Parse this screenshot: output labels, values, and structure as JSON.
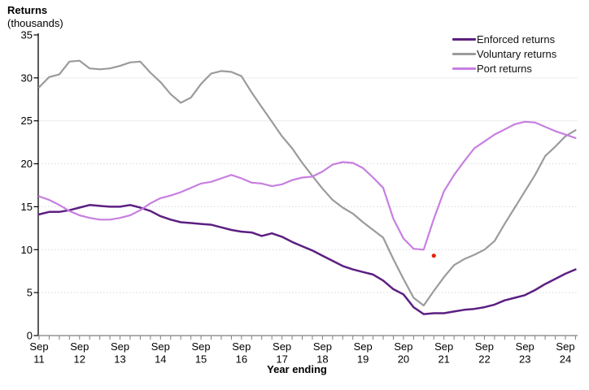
{
  "page": {
    "title": "Returns",
    "subtitle": "(thousands)"
  },
  "chart_data": {
    "type": "line",
    "title": "Returns",
    "subtitle": "(thousands)",
    "xlabel": "Year ending",
    "ylabel": "",
    "ylim": [
      0,
      35
    ],
    "yticks": [
      0,
      5,
      10,
      15,
      20,
      25,
      30,
      35
    ],
    "grid": "horizontal-light",
    "legend_position": "top-right",
    "x_tick_note": "quarterly minor ticks, year labels each September",
    "x": [
      "Sep 11",
      "Dec 11",
      "Mar 12",
      "Jun 12",
      "Sep 12",
      "Dec 12",
      "Mar 13",
      "Jun 13",
      "Sep 13",
      "Dec 13",
      "Mar 14",
      "Jun 14",
      "Sep 14",
      "Dec 14",
      "Mar 15",
      "Jun 15",
      "Sep 15",
      "Dec 15",
      "Mar 16",
      "Jun 16",
      "Sep 16",
      "Dec 16",
      "Mar 17",
      "Jun 17",
      "Sep 17",
      "Dec 17",
      "Mar 18",
      "Jun 18",
      "Sep 18",
      "Dec 18",
      "Mar 19",
      "Jun 19",
      "Sep 19",
      "Dec 19",
      "Mar 20",
      "Jun 20",
      "Sep 20",
      "Dec 20",
      "Mar 21",
      "Jun 21",
      "Sep 21",
      "Dec 21",
      "Mar 22",
      "Jun 22",
      "Sep 22",
      "Dec 22",
      "Mar 23",
      "Jun 23",
      "Sep 23",
      "Dec 23",
      "Mar 24",
      "Jun 24",
      "Sep 24",
      "Dec 24"
    ],
    "series": [
      {
        "name": "Enforced returns",
        "color": "#5c1f82",
        "values": [
          14.1,
          14.4,
          14.4,
          14.6,
          14.9,
          15.2,
          15.1,
          15.0,
          15.0,
          15.2,
          14.9,
          14.5,
          13.9,
          13.5,
          13.2,
          13.1,
          13.0,
          12.9,
          12.6,
          12.3,
          12.1,
          12.0,
          11.6,
          11.9,
          11.5,
          10.9,
          10.4,
          9.9,
          9.3,
          8.7,
          8.1,
          7.7,
          7.4,
          7.1,
          6.4,
          5.4,
          4.8,
          3.3,
          2.5,
          2.6,
          2.6,
          2.8,
          3.0,
          3.1,
          3.3,
          3.6,
          4.1,
          4.4,
          4.7,
          5.3,
          6.0,
          6.6,
          7.2,
          7.7
        ]
      },
      {
        "name": "Voluntary returns",
        "color": "#9b9b9b",
        "values": [
          28.9,
          30.1,
          30.4,
          31.9,
          32.0,
          31.1,
          31.0,
          31.1,
          31.4,
          31.8,
          31.9,
          30.6,
          29.5,
          28.1,
          27.1,
          27.7,
          29.3,
          30.5,
          30.8,
          30.7,
          30.2,
          28.3,
          26.6,
          24.9,
          23.2,
          21.8,
          20.1,
          18.6,
          17.1,
          15.8,
          14.9,
          14.2,
          13.2,
          12.3,
          11.4,
          8.9,
          6.6,
          4.4,
          3.5,
          5.2,
          6.8,
          8.2,
          8.9,
          9.4,
          10.0,
          11.0,
          13.0,
          14.9,
          16.8,
          18.7,
          20.9,
          22.0,
          23.2,
          23.9
        ]
      },
      {
        "name": "Port returns",
        "color": "#c77fe0",
        "values": [
          16.2,
          15.8,
          15.2,
          14.5,
          14.0,
          13.7,
          13.5,
          13.5,
          13.7,
          14.0,
          14.6,
          15.4,
          16.0,
          16.3,
          16.7,
          17.2,
          17.7,
          17.9,
          18.3,
          18.7,
          18.3,
          17.8,
          17.7,
          17.4,
          17.6,
          18.1,
          18.4,
          18.5,
          19.1,
          19.9,
          20.2,
          20.1,
          19.5,
          18.4,
          17.2,
          13.6,
          11.3,
          10.1,
          10.0,
          13.6,
          16.8,
          18.7,
          20.3,
          21.8,
          22.6,
          23.4,
          24.0,
          24.6,
          24.9,
          24.8,
          24.3,
          23.8,
          23.4,
          23.0
        ]
      }
    ],
    "annotations": [
      {
        "type": "point",
        "x": "Jun 21",
        "value": 9.3,
        "color": "#e8220c",
        "name": "red-dot-marker"
      }
    ]
  },
  "style": {
    "y_axis_color": "#000000",
    "x_axis_color": "#7f7f7f",
    "grid_solid_color": "#ececec",
    "grid_dotted_color": "#d9d9d9",
    "tick_label_color": "#000000"
  }
}
